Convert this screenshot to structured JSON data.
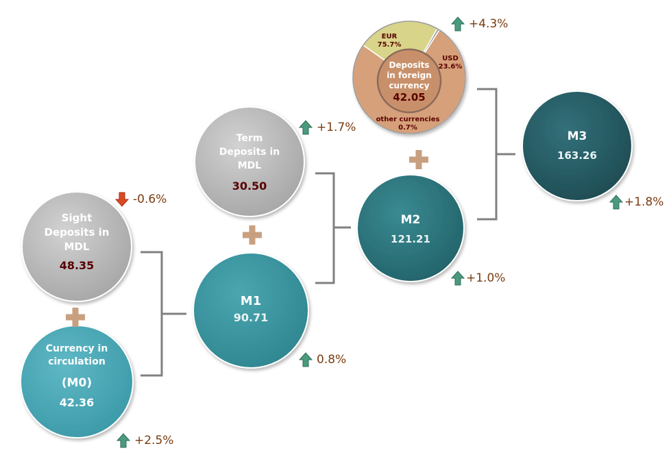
{
  "nodes": {
    "sight": {
      "lines": [
        "Sight",
        "Deposits in",
        "MDL"
      ],
      "value": "48.35"
    },
    "currency": {
      "lines": [
        "Currency in",
        "circulation"
      ],
      "code": "(M0)",
      "value": "42.36"
    },
    "term": {
      "lines": [
        "Term",
        "Deposits in",
        "MDL"
      ],
      "value": "30.50"
    },
    "m1": {
      "name": "M1",
      "value": "90.71"
    },
    "m2": {
      "name": "M2",
      "value": "121.21"
    },
    "m3": {
      "name": "M3",
      "value": "163.26"
    },
    "foreign": {
      "lines": [
        "Deposits",
        "in foreign",
        "currency"
      ],
      "value": "42.05"
    }
  },
  "foreign_breakdown": {
    "eur": {
      "name": "EUR",
      "share": "75.7%",
      "value": 75.7
    },
    "usd": {
      "name": "USD",
      "share": "23.6%",
      "value": 23.6
    },
    "other": {
      "name": "other currencies",
      "share": "0.7%",
      "value": 0.7
    }
  },
  "changes": {
    "sight": "-0.6%",
    "currency": "+2.5%",
    "term": "+1.7%",
    "m1": "0.8%",
    "m2": "+1.0%",
    "m3": "+1.8%",
    "foreign": "+4.3%"
  },
  "colors": {
    "gray_circle": "#b3b3b3",
    "light_teal": "#4aa8b6",
    "mid_teal": "#3a98a2",
    "dark_teal": "#2f7880",
    "darker_teal": "#285c64",
    "value_dark_red": "#5a0000",
    "eur_slice": "#d6a07a",
    "usd_slice": "#d8d48a",
    "plus": "#c8a080",
    "bracket": "#808080",
    "up_arrow": "#4a9a7e",
    "down_arrow": "#d84a24",
    "change_text": "#7a3b10"
  }
}
